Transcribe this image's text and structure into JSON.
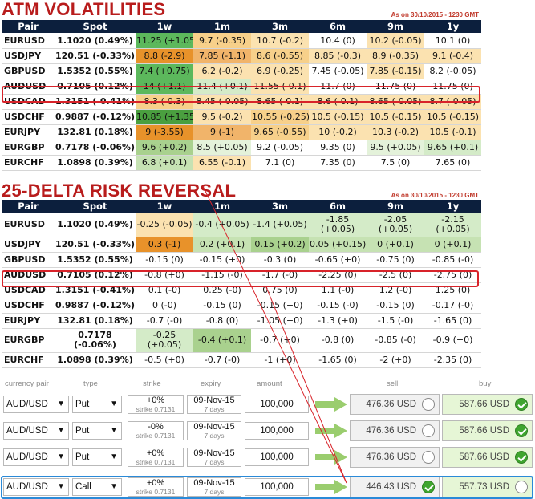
{
  "atm": {
    "title": "ATM VOLATILITIES",
    "as_of": "As on 30/10/2015 - 1230 GMT",
    "headers": [
      "Pair",
      "Spot",
      "1w",
      "1m",
      "3m",
      "6m",
      "9m",
      "1y"
    ],
    "rows": [
      {
        "pair": "EURUSD",
        "spot": "1.1020 (0.49%)",
        "cells": [
          "11.25 (+1.05)",
          "9.7 (-0.35)",
          "10.7 (-0.2)",
          "10.4 (0)",
          "10.2 (-0.05)",
          "10.1 (0)"
        ],
        "bg": [
          "#5cb85c",
          "#f7d08a",
          "#fbe2b0",
          "#ffffff",
          "#fbe2b0",
          "#ffffff"
        ]
      },
      {
        "pair": "USDJPY",
        "spot": "120.51 (-0.33%)",
        "cells": [
          "8.8 (-2.9)",
          "7.85 (-1.1)",
          "8.6 (-0.55)",
          "8.85 (-0.3)",
          "8.9 (-0.35)",
          "9.1 (-0.4)"
        ],
        "bg": [
          "#e8922a",
          "#f1b46a",
          "#f7d08a",
          "#fbe2b0",
          "#fbe2b0",
          "#fbe2b0"
        ]
      },
      {
        "pair": "GBPUSD",
        "spot": "1.5352 (0.55%)",
        "cells": [
          "7.4 (+0.75)",
          "6.2 (-0.2)",
          "6.9 (-0.25)",
          "7.45 (-0.05)",
          "7.85 (-0.15)",
          "8.2 (-0.05)"
        ],
        "bg": [
          "#5cb85c",
          "#fbe2b0",
          "#fbe2b0",
          "#ffffff",
          "#fbe2b0",
          "#ffffff"
        ]
      },
      {
        "pair": "AUDUSD",
        "spot": "0.7105 (0.12%)",
        "cells": [
          "14 (+1.1)",
          "11.4 (+0.1)",
          "11.55 (-0.1)",
          "11.7 (0)",
          "11.75 (0)",
          "11.75 (0)"
        ],
        "bg": [
          "#5cb85c",
          "#d4ebc8",
          "#fbe2b0",
          "#ffffff",
          "#ffffff",
          "#ffffff"
        ]
      },
      {
        "pair": "USDCAD",
        "spot": "1.3151 (-0.41%)",
        "cells": [
          "8.3 (-0.3)",
          "8.45 (-0.05)",
          "8.65 (-0.1)",
          "8.6 (-0.1)",
          "8.65 (-0.05)",
          "8.7 (-0.05)"
        ],
        "bg": [
          "#f7d08a",
          "#fbe2b0",
          "#fbe2b0",
          "#fbe2b0",
          "#fbe2b0",
          "#fbe2b0"
        ]
      },
      {
        "pair": "USDCHF",
        "spot": "0.9887 (-0.12%)",
        "cells": [
          "10.85 (+1.35)",
          "9.5 (-0.2)",
          "10.55 (-0.25)",
          "10.5 (-0.15)",
          "10.5 (-0.15)",
          "10.5 (-0.15)"
        ],
        "bg": [
          "#4a9f3f",
          "#fbe2b0",
          "#f7d08a",
          "#fbe2b0",
          "#fbe2b0",
          "#fbe2b0"
        ]
      },
      {
        "pair": "EURJPY",
        "spot": "132.81 (0.18%)",
        "cells": [
          "9 (-3.55)",
          "9 (-1)",
          "9.65 (-0.55)",
          "10 (-0.2)",
          "10.3 (-0.2)",
          "10.5 (-0.1)"
        ],
        "bg": [
          "#e8922a",
          "#f1b46a",
          "#f7d08a",
          "#fbe2b0",
          "#fbe2b0",
          "#fbe2b0"
        ]
      },
      {
        "pair": "EURGBP",
        "spot": "0.7178 (-0.06%)",
        "cells": [
          "9.6 (+0.2)",
          "8.5 (+0.05)",
          "9.2 (-0.05)",
          "9.35 (0)",
          "9.5 (+0.05)",
          "9.65 (+0.1)"
        ],
        "bg": [
          "#a9d18e",
          "#e4f2da",
          "#ffffff",
          "#ffffff",
          "#e4f2da",
          "#d4ebc8"
        ]
      },
      {
        "pair": "EURCHF",
        "spot": "1.0898 (0.39%)",
        "cells": [
          "6.8 (+0.1)",
          "6.55 (-0.1)",
          "7.1 (0)",
          "7.35 (0)",
          "7.5 (0)",
          "7.65 (0)"
        ],
        "bg": [
          "#c6e2b3",
          "#fbe2b0",
          "#ffffff",
          "#ffffff",
          "#ffffff",
          "#ffffff"
        ]
      }
    ]
  },
  "rr": {
    "title": "25-DELTA RISK REVERSAL",
    "as_of": "As on 30/10/2015 - 1230 GMT",
    "headers": [
      "Pair",
      "Spot",
      "1w",
      "1m",
      "3m",
      "6m",
      "9m",
      "1y"
    ],
    "rows": [
      {
        "pair": "EURUSD",
        "spot": "1.1020 (0.49%)",
        "tall": true,
        "cells": [
          "-0.25 (-0.05)",
          "-0.4 (+0.05)",
          "-1.4 (+0.05)",
          "-1.85 (+0.05)",
          "-2.05 (+0.05)",
          "-2.15 (+0.05)"
        ],
        "bg": [
          "#fbe2b0",
          "#d4ebc8",
          "#d4ebc8",
          "#d4ebc8",
          "#d4ebc8",
          "#d4ebc8"
        ]
      },
      {
        "pair": "USDJPY",
        "spot": "120.51 (-0.33%)",
        "cells": [
          "0.3 (-1)",
          "0.2 (+0.1)",
          "0.15 (+0.2)",
          "0.05 (+0.15)",
          "0 (+0.1)",
          "0 (+0.1)"
        ],
        "bg": [
          "#e8922a",
          "#c6e2b3",
          "#a9d18e",
          "#c6e2b3",
          "#c6e2b3",
          "#c6e2b3"
        ]
      },
      {
        "pair": "GBPUSD",
        "spot": "1.5352 (0.55%)",
        "cells": [
          "-0.15 (0)",
          "-0.15 (+0)",
          "-0.3 (0)",
          "-0.65 (+0)",
          "-0.75 (0)",
          "-0.85 (-0)"
        ],
        "bg": [
          "#ffffff",
          "#ffffff",
          "#ffffff",
          "#ffffff",
          "#ffffff",
          "#ffffff"
        ]
      },
      {
        "pair": "AUDUSD",
        "spot": "0.7105 (0.12%)",
        "cells": [
          "-0.8 (+0)",
          "-1.15 (-0)",
          "-1.7 (-0)",
          "-2.25 (0)",
          "-2.5 (0)",
          "-2.75 (0)"
        ],
        "bg": [
          "#ffffff",
          "#ffffff",
          "#ffffff",
          "#ffffff",
          "#ffffff",
          "#ffffff"
        ]
      },
      {
        "pair": "USDCAD",
        "spot": "1.3151 (-0.41%)",
        "cells": [
          "0.1 (-0)",
          "0.25 (-0)",
          "0.75 (0)",
          "1.1 (-0)",
          "1.2 (-0)",
          "1.25 (0)"
        ],
        "bg": [
          "#ffffff",
          "#ffffff",
          "#ffffff",
          "#ffffff",
          "#ffffff",
          "#ffffff"
        ]
      },
      {
        "pair": "USDCHF",
        "spot": "0.9887 (-0.12%)",
        "cells": [
          "0 (-0)",
          "-0.15 (0)",
          "-0.15 (+0)",
          "-0.15 (-0)",
          "-0.15 (0)",
          "-0.17 (-0)"
        ],
        "bg": [
          "#ffffff",
          "#ffffff",
          "#ffffff",
          "#ffffff",
          "#ffffff",
          "#ffffff"
        ]
      },
      {
        "pair": "EURJPY",
        "spot": "132.81 (0.18%)",
        "cells": [
          "-0.7 (-0)",
          "-0.8 (0)",
          "-1.05 (+0)",
          "-1.3 (+0)",
          "-1.5 (-0)",
          "-1.65 (0)"
        ],
        "bg": [
          "#ffffff",
          "#ffffff",
          "#ffffff",
          "#ffffff",
          "#ffffff",
          "#ffffff"
        ]
      },
      {
        "pair": "EURGBP",
        "spot": "0.7178 (-0.06%)",
        "tall": true,
        "cells": [
          "-0.25 (+0.05)",
          "-0.4 (+0.1)",
          "-0.7 (+0)",
          "-0.8 (0)",
          "-0.85 (-0)",
          "-0.9 (+0)"
        ],
        "bg": [
          "#d4ebc8",
          "#a9d18e",
          "#ffffff",
          "#ffffff",
          "#ffffff",
          "#ffffff"
        ]
      },
      {
        "pair": "EURCHF",
        "spot": "1.0898 (0.39%)",
        "cells": [
          "-0.5 (+0)",
          "-0.7 (-0)",
          "-1 (+0)",
          "-1.65 (0)",
          "-2 (+0)",
          "-2.35 (0)"
        ],
        "bg": [
          "#ffffff",
          "#ffffff",
          "#ffffff",
          "#ffffff",
          "#ffffff",
          "#ffffff"
        ]
      }
    ]
  },
  "order": {
    "headers": {
      "pair": "currency pair",
      "type": "type",
      "strike": "strike",
      "expiry": "expiry",
      "amount": "amount",
      "sell": "sell",
      "buy": "buy"
    },
    "rows": [
      {
        "pair": "AUD/USD",
        "type": "Put",
        "strike": "+0%",
        "strike_sub": "strike 0.7131",
        "expiry": "09-Nov-15",
        "expiry_sub": "7 days",
        "amount": "100,000",
        "sell": "476.36 USD",
        "buy": "587.66 USD",
        "sell_checked": false,
        "buy_checked": true
      },
      {
        "pair": "AUD/USD",
        "type": "Put",
        "strike": "-0%",
        "strike_sub": "strike 0.7131",
        "expiry": "09-Nov-15",
        "expiry_sub": "7 days",
        "amount": "100,000",
        "sell": "476.36 USD",
        "buy": "587.66 USD",
        "sell_checked": false,
        "buy_checked": true
      },
      {
        "pair": "AUD/USD",
        "type": "Put",
        "strike": "+0%",
        "strike_sub": "strike 0.7131",
        "expiry": "09-Nov-15",
        "expiry_sub": "7 days",
        "amount": "100,000",
        "sell": "476.36 USD",
        "buy": "587.66 USD",
        "sell_checked": false,
        "buy_checked": true
      },
      {
        "pair": "AUD/USD",
        "type": "Call",
        "strike": "+0%",
        "strike_sub": "strike 0.7131",
        "expiry": "09-Nov-15",
        "expiry_sub": "7 days",
        "amount": "100,000",
        "sell": "446.43 USD",
        "buy": "557.73 USD",
        "sell_checked": true,
        "buy_checked": false
      }
    ]
  },
  "colors": {
    "header_bg": "#0c1f3d",
    "title": "#b81c1c",
    "highlight_red": "#d8232a",
    "highlight_blue": "#2a8ad8",
    "arrow": "#9acd6e"
  }
}
